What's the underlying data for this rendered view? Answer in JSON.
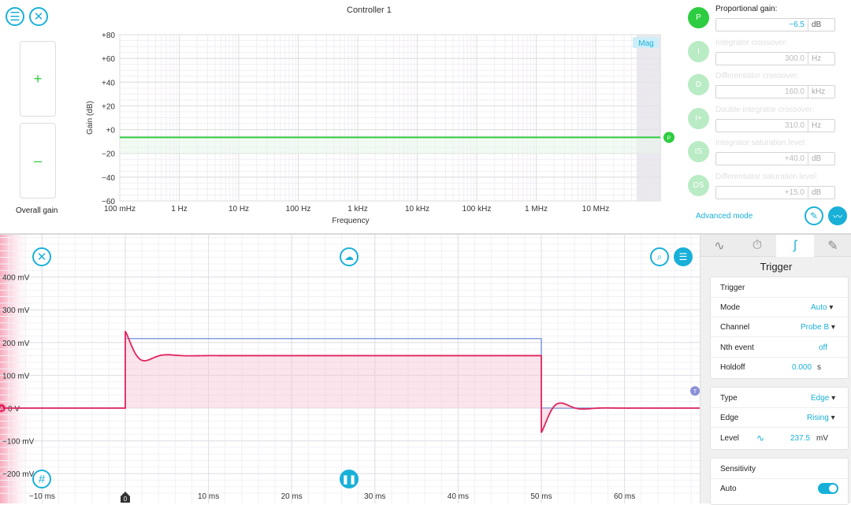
{
  "controller": {
    "title": "Controller 1",
    "overall_gain_label": "Overall gain",
    "plus_label": "+",
    "minus_label": "–",
    "mag_label": "Mag",
    "marker_label": "P",
    "chart": {
      "ylabel": "Gain (dB)",
      "xlabel": "Frequency",
      "yticks": [
        "+80",
        "+60",
        "+40",
        "+20",
        "+0",
        "−20",
        "−40",
        "−60"
      ],
      "xticks": [
        "100 mHz",
        "1 Hz",
        "10 Hz",
        "100 Hz",
        "1 kHz",
        "10 kHz",
        "100 kHz",
        "1 MHz",
        "10 MHz"
      ],
      "ylim": [
        -60,
        80
      ],
      "gain_db": -6.5
    },
    "params": [
      {
        "abbr": "P",
        "label": "Proportional gain:",
        "value": "−6.5",
        "unit": "dB",
        "active": true,
        "color": "#2ecc40"
      },
      {
        "abbr": "I",
        "label": "Integrator crossover:",
        "value": "300.0",
        "unit": "Hz",
        "active": false,
        "color": "#b9ebc4"
      },
      {
        "abbr": "D",
        "label": "Differentiator crossover:",
        "value": "160.0",
        "unit": "kHz",
        "active": false,
        "color": "#b9ebc4"
      },
      {
        "abbr": "I+",
        "label": "Double integrator crossover:",
        "value": "310.0",
        "unit": "Hz",
        "active": false,
        "color": "#b9ebc4"
      },
      {
        "abbr": "IS",
        "label": "Integrator saturation level:",
        "value": "+40.0",
        "unit": "dB",
        "active": false,
        "color": "#b9ebc4"
      },
      {
        "abbr": "DS",
        "label": "Differentiator saturation level:",
        "value": "+15.0",
        "unit": "dB",
        "active": false,
        "color": "#b9ebc4"
      }
    ],
    "advanced_mode": "Advanced mode"
  },
  "scope": {
    "yticks": [
      "400 mV",
      "300 mV",
      "200 mV",
      "100 mV",
      "0 V",
      "−100 mV",
      "−200 mV"
    ],
    "xticks": [
      "−10 ms",
      "0",
      "10 ms",
      "20 ms",
      "30 ms",
      "40 ms",
      "50 ms",
      "60 ms"
    ],
    "trigger_marker": "T",
    "channel_marker": "A",
    "zero_marker": "0"
  },
  "trigger_panel": {
    "title": "Trigger",
    "section1_title": "Trigger",
    "mode_label": "Mode",
    "mode_value": "Auto",
    "channel_label": "Channel",
    "channel_value": "Probe B",
    "nth_label": "Nth event",
    "nth_value": "off",
    "holdoff_label": "Holdoff",
    "holdoff_value": "0.000",
    "holdoff_unit": "s",
    "type_label": "Type",
    "type_value": "Edge",
    "edge_label": "Edge",
    "edge_value": "Rising",
    "level_label": "Level",
    "level_value": "237.5",
    "level_unit": "mV",
    "sensitivity_title": "Sensitivity",
    "auto_label": "Auto",
    "auto_toggle": true
  },
  "colors": {
    "accent": "#19b0d8",
    "green": "#2ecc40",
    "pink": "#e0245e",
    "blue": "#5b7fd6"
  }
}
